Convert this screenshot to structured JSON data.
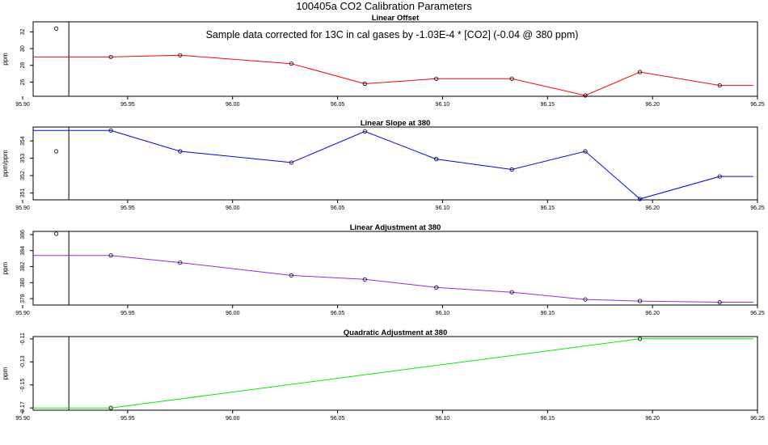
{
  "page_title": "100405a   CO2 Calibration Parameters",
  "annotation": "Sample data corrected for 13C in cal gases by -1.03E-4 * [CO2] (-0.04 @ 380 ppm)",
  "chart_data": [
    {
      "type": "line",
      "title": "Linear Offset",
      "ylabel": "ppm",
      "color": "#ff0000",
      "xlim": [
        95.905,
        96.25
      ],
      "ylim": [
        24.3,
        33.2
      ],
      "xticks": [
        "95.90",
        "95.95",
        "96.00",
        "96.05",
        "96.10",
        "96.15",
        "96.20",
        "96.25"
      ],
      "yticks": [
        "26",
        "28",
        "30",
        "32"
      ],
      "vline": 95.922,
      "outlier": {
        "x": 95.916,
        "y": 32.4
      },
      "line": [
        {
          "x": 95.905,
          "y": 29.0
        },
        {
          "x": 95.942,
          "y": 29.0
        },
        {
          "x": 95.975,
          "y": 29.2
        },
        {
          "x": 96.028,
          "y": 28.2
        },
        {
          "x": 96.063,
          "y": 25.8
        },
        {
          "x": 96.097,
          "y": 26.4
        },
        {
          "x": 96.133,
          "y": 26.4
        },
        {
          "x": 96.168,
          "y": 24.4
        },
        {
          "x": 96.194,
          "y": 27.2
        },
        {
          "x": 96.232,
          "y": 25.6
        },
        {
          "x": 96.248,
          "y": 25.6
        }
      ],
      "points": [
        {
          "x": 95.942,
          "y": 29.0
        },
        {
          "x": 95.975,
          "y": 29.2
        },
        {
          "x": 96.028,
          "y": 28.2
        },
        {
          "x": 96.063,
          "y": 25.8
        },
        {
          "x": 96.097,
          "y": 26.4
        },
        {
          "x": 96.133,
          "y": 26.4
        },
        {
          "x": 96.168,
          "y": 24.4
        },
        {
          "x": 96.194,
          "y": 27.2
        },
        {
          "x": 96.232,
          "y": 25.6
        }
      ]
    },
    {
      "type": "line",
      "title": "Linear Slope at 380",
      "ylabel": "ppm/ppm",
      "color": "#0000ff",
      "xlim": [
        95.905,
        96.25
      ],
      "ylim": [
        350.6,
        354.8
      ],
      "xticks": [
        "95.90",
        "95.95",
        "96.00",
        "96.05",
        "96.10",
        "96.15",
        "96.20",
        "96.25"
      ],
      "yticks": [
        "351",
        "352",
        "353",
        "354"
      ],
      "vline": 95.922,
      "outlier": {
        "x": 95.916,
        "y": 353.4
      },
      "line": [
        {
          "x": 95.905,
          "y": 354.6
        },
        {
          "x": 95.942,
          "y": 354.6
        },
        {
          "x": 95.975,
          "y": 353.4
        },
        {
          "x": 96.028,
          "y": 352.75
        },
        {
          "x": 96.063,
          "y": 354.55
        },
        {
          "x": 96.097,
          "y": 352.95
        },
        {
          "x": 96.133,
          "y": 352.35
        },
        {
          "x": 96.168,
          "y": 353.4
        },
        {
          "x": 96.194,
          "y": 350.65
        },
        {
          "x": 96.232,
          "y": 351.95
        },
        {
          "x": 96.248,
          "y": 351.95
        }
      ],
      "points": [
        {
          "x": 95.942,
          "y": 354.6
        },
        {
          "x": 95.975,
          "y": 353.4
        },
        {
          "x": 96.028,
          "y": 352.75
        },
        {
          "x": 96.063,
          "y": 354.55
        },
        {
          "x": 96.097,
          "y": 352.95
        },
        {
          "x": 96.133,
          "y": 352.35
        },
        {
          "x": 96.168,
          "y": 353.4
        },
        {
          "x": 96.194,
          "y": 350.65
        },
        {
          "x": 96.232,
          "y": 351.95
        }
      ]
    },
    {
      "type": "line",
      "title": "Linear Adjustment at 380",
      "ylabel": "ppm",
      "color": "#a020f0",
      "xlim": [
        95.905,
        96.25
      ],
      "ylim": [
        377.2,
        386.4
      ],
      "xticks": [
        "95.90",
        "95.95",
        "96.00",
        "96.05",
        "96.10",
        "96.15",
        "96.20",
        "96.25"
      ],
      "yticks": [
        "378",
        "380",
        "382",
        "384",
        "386"
      ],
      "vline": 95.922,
      "outlier": {
        "x": 95.916,
        "y": 386.1
      },
      "line": [
        {
          "x": 95.905,
          "y": 383.4
        },
        {
          "x": 95.942,
          "y": 383.4
        },
        {
          "x": 95.975,
          "y": 382.5
        },
        {
          "x": 96.028,
          "y": 380.9
        },
        {
          "x": 96.063,
          "y": 380.4
        },
        {
          "x": 96.097,
          "y": 379.4
        },
        {
          "x": 96.133,
          "y": 378.8
        },
        {
          "x": 96.168,
          "y": 377.9
        },
        {
          "x": 96.194,
          "y": 377.7
        },
        {
          "x": 96.232,
          "y": 377.55
        },
        {
          "x": 96.248,
          "y": 377.55
        }
      ],
      "points": [
        {
          "x": 95.942,
          "y": 383.4
        },
        {
          "x": 95.975,
          "y": 382.5
        },
        {
          "x": 96.028,
          "y": 380.9
        },
        {
          "x": 96.063,
          "y": 380.4
        },
        {
          "x": 96.097,
          "y": 379.4
        },
        {
          "x": 96.133,
          "y": 378.8
        },
        {
          "x": 96.168,
          "y": 377.9
        },
        {
          "x": 96.194,
          "y": 377.7
        },
        {
          "x": 96.232,
          "y": 377.55
        }
      ]
    },
    {
      "type": "line",
      "title": "Quadratic Adjustment at 380",
      "ylabel": "ppm",
      "color": "#00ee00",
      "xlim": [
        95.905,
        96.25
      ],
      "ylim": [
        -0.172,
        -0.108
      ],
      "xticks": [
        "95.90",
        "95.95",
        "96.00",
        "96.05",
        "96.10",
        "96.15",
        "96.20",
        "96.25"
      ],
      "yticks": [
        "-0.17",
        "-0.15",
        "-0.13",
        "-0.11"
      ],
      "vline": 95.922,
      "line": [
        {
          "x": 95.905,
          "y": -0.17
        },
        {
          "x": 95.942,
          "y": -0.17
        },
        {
          "x": 96.194,
          "y": -0.11
        },
        {
          "x": 96.248,
          "y": -0.11
        }
      ],
      "points": [
        {
          "x": 95.942,
          "y": -0.17
        },
        {
          "x": 96.194,
          "y": -0.11
        }
      ]
    }
  ]
}
